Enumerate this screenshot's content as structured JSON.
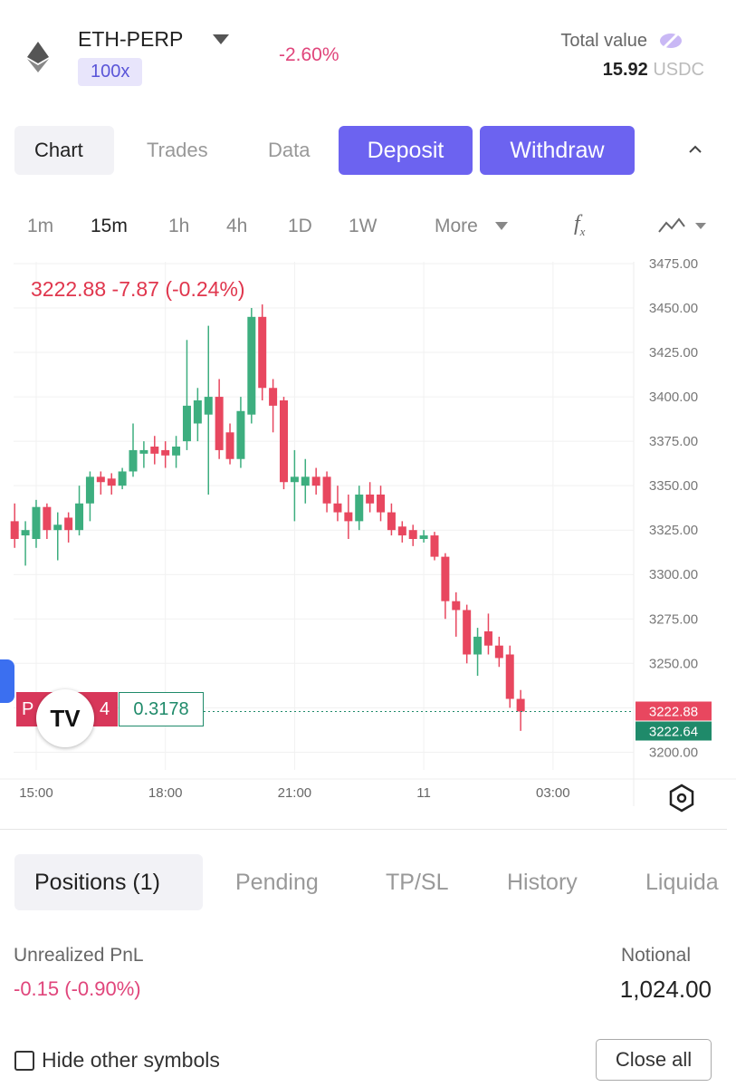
{
  "header": {
    "symbol": "ETH-PERP",
    "leverage": "100x",
    "change": "-2.60%",
    "total_value_label": "Total value",
    "total_value": "15.92",
    "currency": "USDC"
  },
  "tabs": [
    "Chart",
    "Trades",
    "Data"
  ],
  "buttons": {
    "deposit": "Deposit",
    "withdraw": "Withdraw"
  },
  "intervals": [
    "1m",
    "15m",
    "1h",
    "4h",
    "1D",
    "1W",
    "More"
  ],
  "chart_data": {
    "type": "candlestick",
    "legend": {
      "price": "3222.88",
      "change": "-7.87",
      "change_pct": "(-0.24%)"
    },
    "open": [
      3330,
      3322,
      3320,
      3338,
      3325,
      3332,
      3325,
      3340,
      3355,
      3354,
      3350,
      3358,
      3368,
      3372,
      3370,
      3367,
      3375,
      3385,
      3390,
      3400,
      3380,
      3365,
      3390,
      3445,
      3405,
      3398,
      3352,
      3350,
      3355,
      3355,
      3340,
      3335,
      3330,
      3345,
      3345,
      3335,
      3327,
      3325,
      3320,
      3322,
      3310,
      3285,
      3280,
      3255,
      3268,
      3260,
      3255,
      3230
    ],
    "high": [
      3340,
      3330,
      3342,
      3340,
      3335,
      3335,
      3350,
      3358,
      3358,
      3357,
      3360,
      3385,
      3375,
      3378,
      3375,
      3378,
      3432,
      3405,
      3440,
      3410,
      3385,
      3400,
      3450,
      3452,
      3410,
      3400,
      3370,
      3365,
      3360,
      3358,
      3350,
      3345,
      3350,
      3352,
      3350,
      3340,
      3330,
      3328,
      3325,
      3324,
      3312,
      3290,
      3283,
      3270,
      3278,
      3265,
      3260,
      3235
    ],
    "low": [
      3315,
      3305,
      3315,
      3320,
      3308,
      3318,
      3322,
      3330,
      3345,
      3345,
      3348,
      3355,
      3360,
      3362,
      3360,
      3360,
      3370,
      3375,
      3345,
      3365,
      3362,
      3360,
      3385,
      3398,
      3380,
      3348,
      3330,
      3340,
      3345,
      3335,
      3330,
      3320,
      3325,
      3335,
      3330,
      3322,
      3318,
      3316,
      3318,
      3308,
      3275,
      3265,
      3250,
      3243,
      3255,
      3248,
      3225,
      3212
    ],
    "close": [
      3320,
      3325,
      3338,
      3325,
      3328,
      3325,
      3340,
      3355,
      3352,
      3350,
      3358,
      3370,
      3370,
      3368,
      3367,
      3372,
      3395,
      3398,
      3400,
      3370,
      3365,
      3392,
      3445,
      3405,
      3395,
      3352,
      3355,
      3355,
      3350,
      3340,
      3335,
      3330,
      3345,
      3340,
      3335,
      3325,
      3322,
      3320,
      3322,
      3310,
      3285,
      3280,
      3255,
      3265,
      3260,
      3253,
      3230,
      3222.88
    ],
    "up_color": "#3dae7f",
    "down_color": "#e8475f",
    "ylim": [
      3190,
      3476
    ],
    "yticks": [
      {
        "value": 3200,
        "label": "3200.00"
      },
      {
        "value": 3225,
        "label": "3225.00"
      },
      {
        "value": 3250,
        "label": "3250.00"
      },
      {
        "value": 3275,
        "label": "3275.00"
      },
      {
        "value": 3300,
        "label": "3300.00"
      },
      {
        "value": 3325,
        "label": "3325.00"
      },
      {
        "value": 3350,
        "label": "3350.00"
      },
      {
        "value": 3375,
        "label": "3375.00"
      },
      {
        "value": 3400,
        "label": "3400.00"
      },
      {
        "value": 3425,
        "label": "3425.00"
      },
      {
        "value": 3450,
        "label": "3450.00"
      },
      {
        "value": 3475,
        "label": "3475.00"
      }
    ],
    "xlim": [
      -0.1,
      57.5
    ],
    "xticks": [
      {
        "value": 2,
        "label": "15:00"
      },
      {
        "value": 14,
        "label": "18:00"
      },
      {
        "value": 26,
        "label": "21:00"
      },
      {
        "value": 38,
        "label": "11"
      },
      {
        "value": 50,
        "label": "03:00"
      }
    ],
    "grid": true,
    "price_tags": [
      {
        "value": 3222.88,
        "color": "#e8475f"
      },
      {
        "value": 3222.64,
        "color": "#1f8a6a"
      }
    ],
    "position_line": {
      "side": "P",
      "qty": "4",
      "price": "0.3178"
    }
  },
  "positions_tabs": [
    "Positions (1)",
    "Pending",
    "TP/SL",
    "History",
    "Liquida"
  ],
  "pnl": {
    "label": "Unrealized PnL",
    "value": "-0.15 (-0.90%)"
  },
  "notional": {
    "label": "Notional",
    "value": "1,024.00"
  },
  "hide_label": "Hide other symbols",
  "close_all": "Close all"
}
